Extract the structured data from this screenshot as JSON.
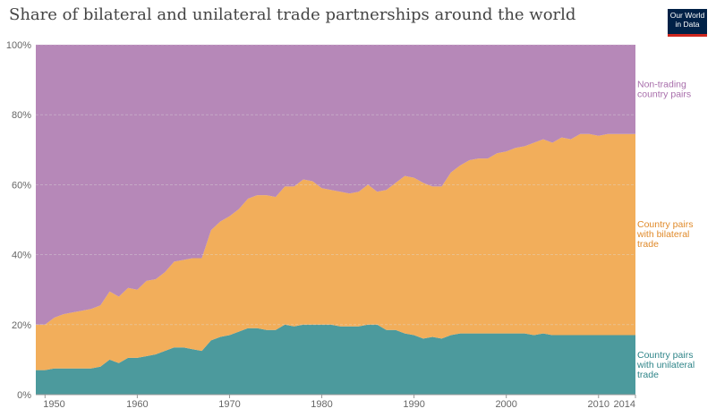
{
  "header": {
    "title": "Share of bilateral and unilateral trade partnerships around the world",
    "logo_line1": "Our World",
    "logo_line2": "in Data"
  },
  "chart_data": {
    "type": "area",
    "title": "Share of bilateral and unilateral trade partnerships around the world",
    "stacked": true,
    "xlim": [
      1949,
      2014
    ],
    "ylim": [
      0,
      100
    ],
    "y_unit": "%",
    "x_ticks": [
      1950,
      1960,
      1970,
      1980,
      1990,
      2000,
      2010,
      2014
    ],
    "y_ticks": [
      0,
      20,
      40,
      60,
      80,
      100
    ],
    "y_tick_labels": [
      "0%",
      "20%",
      "40%",
      "60%",
      "80%",
      "100%"
    ],
    "grid": "horizontal",
    "legend": "right, inline labels",
    "x": [
      1949,
      1950,
      1951,
      1952,
      1953,
      1954,
      1955,
      1956,
      1957,
      1958,
      1959,
      1960,
      1961,
      1962,
      1963,
      1964,
      1965,
      1966,
      1967,
      1968,
      1969,
      1970,
      1971,
      1972,
      1973,
      1974,
      1975,
      1976,
      1977,
      1978,
      1979,
      1980,
      1981,
      1982,
      1983,
      1984,
      1985,
      1986,
      1987,
      1988,
      1989,
      1990,
      1991,
      1992,
      1993,
      1994,
      1995,
      1996,
      1997,
      1998,
      1999,
      2000,
      2001,
      2002,
      2003,
      2004,
      2005,
      2006,
      2007,
      2008,
      2009,
      2010,
      2011,
      2012,
      2013,
      2014
    ],
    "series": [
      {
        "name": "Country pairs with unilateral trade",
        "color": "#4c9a9d",
        "values": [
          7,
          7,
          7.5,
          7.5,
          7.5,
          7.5,
          7.5,
          8,
          10,
          9,
          10.5,
          10.5,
          11,
          11.5,
          12.5,
          13.5,
          13.5,
          13,
          12.5,
          15.5,
          16.5,
          17,
          18,
          19,
          19,
          18.5,
          18.5,
          20,
          19.5,
          20,
          20,
          20,
          20,
          19.5,
          19.5,
          19.5,
          20,
          20,
          18.5,
          18.5,
          17.5,
          17,
          16,
          16.5,
          16,
          17,
          17.5,
          17.5,
          17.5,
          17.5,
          17.5,
          17.5,
          17.5,
          17.5,
          17,
          17.5,
          17,
          17,
          17,
          17,
          17,
          17,
          17,
          17,
          17,
          17
        ]
      },
      {
        "name": "Country pairs with bilateral trade",
        "color": "#f2ae5b",
        "values": [
          13,
          13,
          14.5,
          15.5,
          16,
          16.5,
          17,
          17.5,
          19.5,
          19,
          20,
          19.5,
          21.5,
          21.5,
          22.5,
          24.5,
          25,
          26,
          26.5,
          31.5,
          33,
          34,
          35,
          37,
          38,
          38.5,
          38,
          39.5,
          40,
          41.5,
          41,
          39,
          38.5,
          38.5,
          38,
          38.5,
          40,
          38,
          40,
          42,
          45,
          45,
          44.5,
          43,
          43.5,
          46.5,
          48,
          49.5,
          50,
          50,
          51.5,
          52,
          53,
          53.5,
          55,
          55.5,
          55,
          56.5,
          56,
          57.5,
          57.5,
          57,
          57.5,
          57.5,
          57.5,
          57.5
        ]
      },
      {
        "name": "Non-trading country pairs",
        "color": "#b688b8",
        "values": [
          80,
          80,
          78,
          77,
          76.5,
          76,
          75.5,
          74.5,
          70.5,
          72,
          69.5,
          70,
          67.5,
          67,
          65,
          62,
          61.5,
          61,
          61,
          53,
          50.5,
          49,
          47,
          44,
          43,
          43,
          43.5,
          40.5,
          40.5,
          38.5,
          39,
          41,
          41.5,
          42,
          42.5,
          42,
          40,
          42,
          41.5,
          39.5,
          37.5,
          38,
          39.5,
          40.5,
          40.5,
          36.5,
          34.5,
          33,
          32.5,
          32.5,
          31,
          30.5,
          29.5,
          29,
          28,
          27,
          28,
          26.5,
          27,
          25.5,
          25.5,
          26,
          25.5,
          25.5,
          25.5,
          25.5
        ]
      }
    ],
    "series_labels": [
      [
        "Non-trading",
        "country pairs"
      ],
      [
        "Country pairs",
        "with bilateral",
        "trade"
      ],
      [
        "Country pairs",
        "with unilateral",
        "trade"
      ]
    ],
    "label_colors": [
      "#a86eab",
      "#e08a2a",
      "#2e8488"
    ]
  }
}
